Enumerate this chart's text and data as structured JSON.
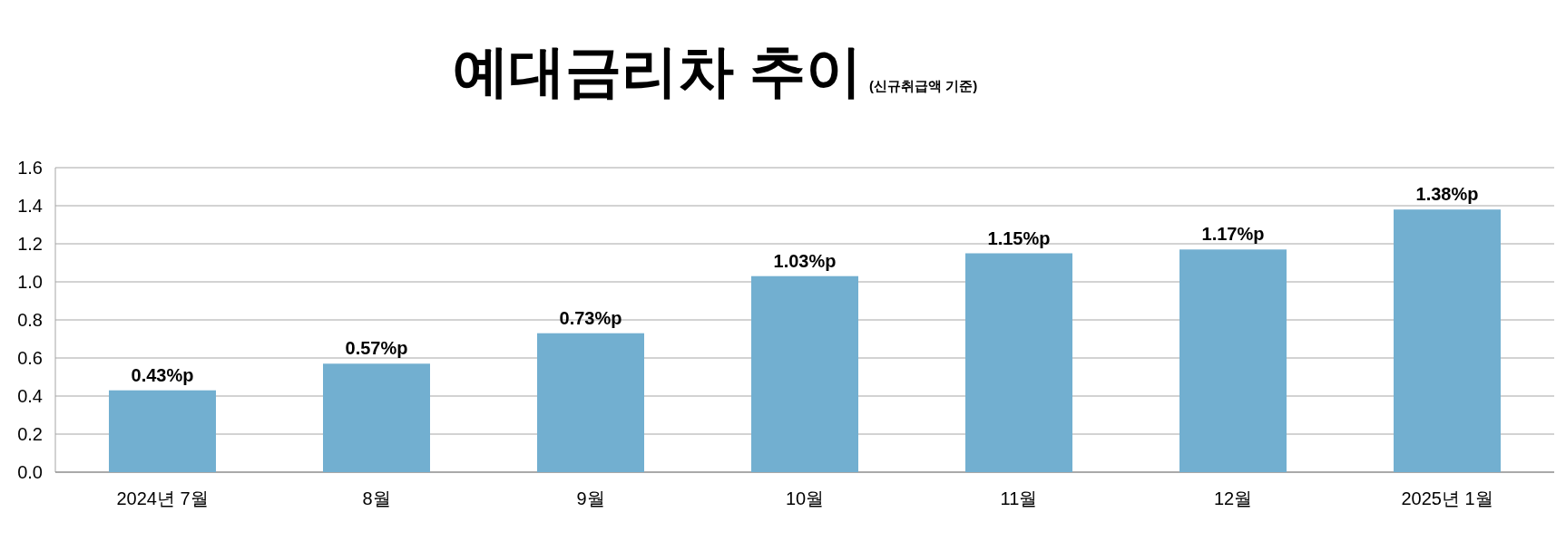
{
  "chart_data": {
    "type": "bar",
    "title": "예대금리차 추이",
    "subtitle": "(신규취급액 기준)",
    "categories": [
      "2024년 7월",
      "8월",
      "9월",
      "10월",
      "11월",
      "12월",
      "2025년 1월"
    ],
    "values": [
      0.43,
      0.57,
      0.73,
      1.03,
      1.15,
      1.17,
      1.38
    ],
    "value_labels": [
      "0.43%p",
      "0.57%p",
      "0.73%p",
      "1.03%p",
      "1.15%p",
      "1.17%p",
      "1.38%p"
    ],
    "color": "#72afd0",
    "ylim": [
      0,
      1.6
    ],
    "yticks": [
      {
        "value": 0,
        "label": "0.0"
      },
      {
        "value": 0.2,
        "label": "0.2"
      },
      {
        "value": 0.4,
        "label": "0.4"
      },
      {
        "value": 0.6,
        "label": "0.6"
      },
      {
        "value": 0.8,
        "label": "0.8"
      },
      {
        "value": 1,
        "label": "1.0"
      },
      {
        "value": 1.2,
        "label": "1.2"
      },
      {
        "value": 1.4,
        "label": "1.4"
      },
      {
        "value": 1.6,
        "label": "1.6"
      }
    ],
    "grid": "y"
  }
}
